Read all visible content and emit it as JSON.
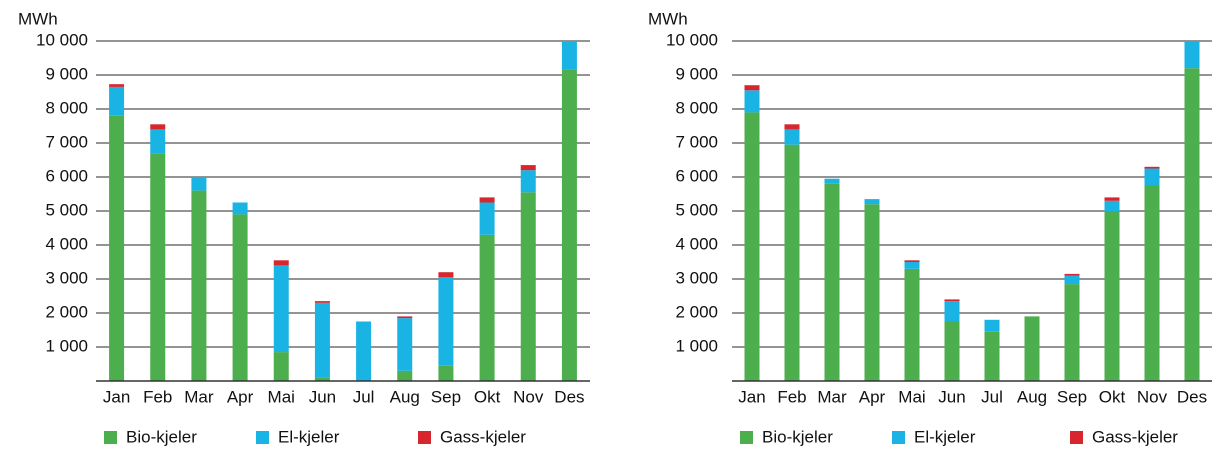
{
  "chart_data": [
    {
      "type": "bar",
      "stacked": true,
      "ylabel": "MWh",
      "categories": [
        "Jan",
        "Feb",
        "Mar",
        "Apr",
        "Mai",
        "Jun",
        "Jul",
        "Aug",
        "Sep",
        "Okt",
        "Nov",
        "Des"
      ],
      "series": [
        {
          "name": "Bio-kjeler",
          "color": "#4cae4c",
          "values": [
            7800,
            6700,
            5600,
            4900,
            850,
            100,
            0,
            300,
            450,
            4300,
            5550,
            9150
          ]
        },
        {
          "name": "El-kjeler",
          "color": "#1ab4e4",
          "values": [
            850,
            700,
            400,
            350,
            2550,
            2200,
            1750,
            1550,
            2600,
            950,
            650,
            850
          ]
        },
        {
          "name": "Gass-kjeler",
          "color": "#d8262e",
          "values": [
            80,
            150,
            0,
            0,
            150,
            50,
            0,
            50,
            150,
            150,
            150,
            0
          ]
        }
      ],
      "ylim": [
        0,
        10000
      ],
      "yticks": [
        {
          "value": 1000,
          "label": "1 000"
        },
        {
          "value": 2000,
          "label": "2 000"
        },
        {
          "value": 3000,
          "label": "3 000"
        },
        {
          "value": 4000,
          "label": "4 000"
        },
        {
          "value": 5000,
          "label": "5 000"
        },
        {
          "value": 6000,
          "label": "6 000"
        },
        {
          "value": 7000,
          "label": "7 000"
        },
        {
          "value": 8000,
          "label": "8 000"
        },
        {
          "value": 9000,
          "label": "9 000"
        },
        {
          "value": 10000,
          "label": "10 000"
        }
      ],
      "grid": true
    },
    {
      "type": "bar",
      "stacked": true,
      "ylabel": "MWh",
      "categories": [
        "Jan",
        "Feb",
        "Mar",
        "Apr",
        "Mai",
        "Jun",
        "Jul",
        "Aug",
        "Sep",
        "Okt",
        "Nov",
        "Des"
      ],
      "series": [
        {
          "name": "Bio-kjeler",
          "color": "#4cae4c",
          "values": [
            7900,
            6950,
            5800,
            5200,
            3300,
            1750,
            1450,
            1900,
            2850,
            5000,
            5750,
            9200
          ]
        },
        {
          "name": "El-kjeler",
          "color": "#1ab4e4",
          "values": [
            650,
            450,
            150,
            150,
            200,
            600,
            350,
            0,
            250,
            300,
            500,
            800
          ]
        },
        {
          "name": "Gass-kjeler",
          "color": "#d8262e",
          "values": [
            150,
            150,
            0,
            0,
            50,
            50,
            0,
            0,
            50,
            100,
            50,
            0
          ]
        }
      ],
      "ylim": [
        0,
        10000
      ],
      "yticks": [
        {
          "value": 1000,
          "label": "1 000"
        },
        {
          "value": 2000,
          "label": "2 000"
        },
        {
          "value": 3000,
          "label": "3 000"
        },
        {
          "value": 4000,
          "label": "4 000"
        },
        {
          "value": 5000,
          "label": "5 000"
        },
        {
          "value": 6000,
          "label": "6 000"
        },
        {
          "value": 7000,
          "label": "7 000"
        },
        {
          "value": 8000,
          "label": "8 000"
        },
        {
          "value": 9000,
          "label": "9 000"
        },
        {
          "value": 10000,
          "label": "10 000"
        }
      ],
      "grid": true
    }
  ]
}
